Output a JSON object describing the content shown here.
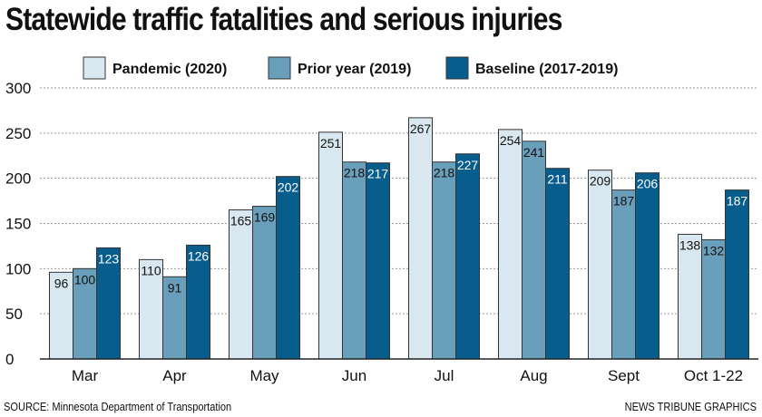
{
  "colors": {
    "pandemic": "#d9e8f0",
    "prior": "#6a9fbb",
    "baseline": "#075d8c",
    "grid": "#9a9a9a",
    "axis": "#222222"
  },
  "chart_data": {
    "type": "bar",
    "title": "Statewide traffic fatalities and serious injuries",
    "categories": [
      "Mar",
      "Apr",
      "May",
      "Jun",
      "Jul",
      "Aug",
      "Sept",
      "Oct 1-22"
    ],
    "series": [
      {
        "name": "Pandemic (2020)",
        "values": [
          96,
          110,
          165,
          251,
          267,
          254,
          209,
          138
        ]
      },
      {
        "name": "Prior year (2019)",
        "values": [
          100,
          91,
          169,
          218,
          218,
          241,
          187,
          132
        ]
      },
      {
        "name": "Baseline (2017-2019)",
        "values": [
          123,
          126,
          202,
          217,
          227,
          211,
          206,
          187
        ]
      }
    ],
    "y_ticks": [
      0,
      50,
      100,
      150,
      200,
      250,
      300
    ],
    "ylim": [
      0,
      300
    ],
    "xlabel": "",
    "ylabel": "",
    "grid": true,
    "legend": "top-center"
  },
  "footer": {
    "source": "SOURCE: Minnesota Department of Transportation",
    "credit": "NEWS TRIBUNE GRAPHICS"
  }
}
